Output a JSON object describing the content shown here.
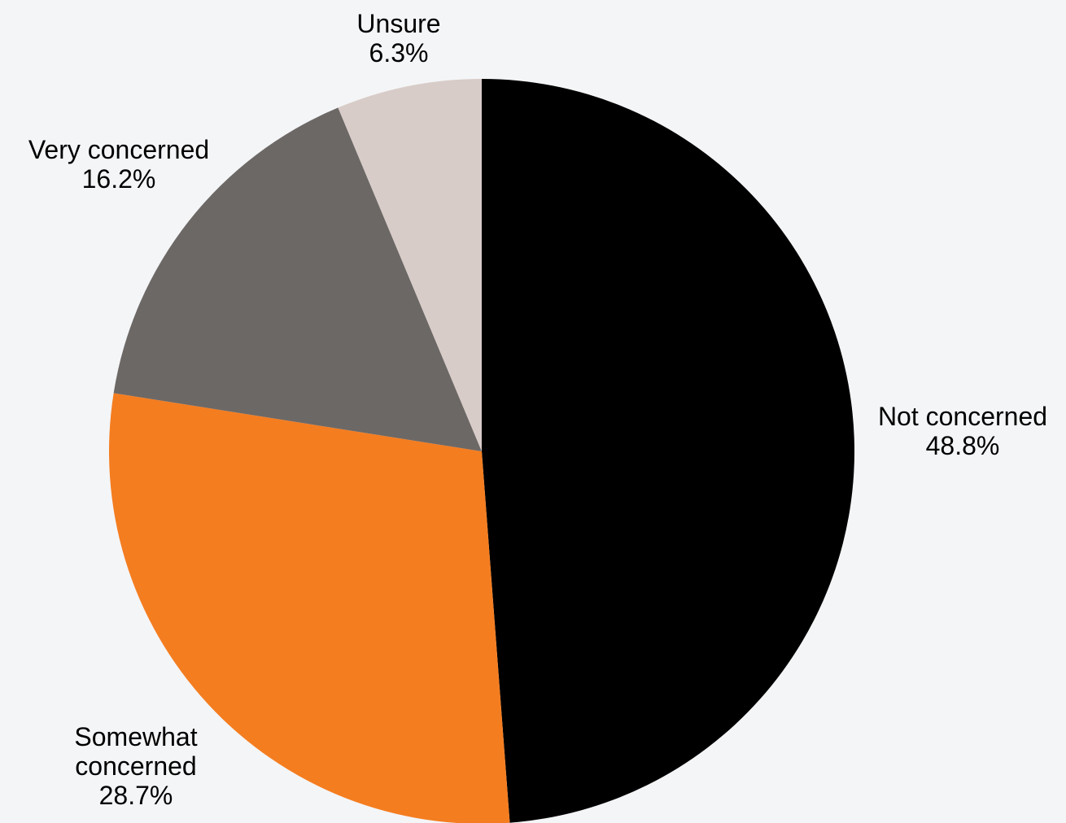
{
  "chart_data": {
    "type": "pie",
    "title": "",
    "slices": [
      {
        "label_lines": [
          "Not concerned"
        ],
        "value_label": "48.8%",
        "value": 48.8,
        "color": "#000000"
      },
      {
        "label_lines": [
          "Somewhat",
          "concerned"
        ],
        "value_label": "28.7%",
        "value": 28.7,
        "color": "#f47d20"
      },
      {
        "label_lines": [
          "Very concerned"
        ],
        "value_label": "16.2%",
        "value": 16.2,
        "color": "#6c6866"
      },
      {
        "label_lines": [
          "Unsure"
        ],
        "value_label": "6.3%",
        "value": 6.3,
        "color": "#d8ccc8"
      }
    ],
    "start": "12 o'clock",
    "direction": "clockwise",
    "legend": "none",
    "background": "#f4f5f7"
  }
}
